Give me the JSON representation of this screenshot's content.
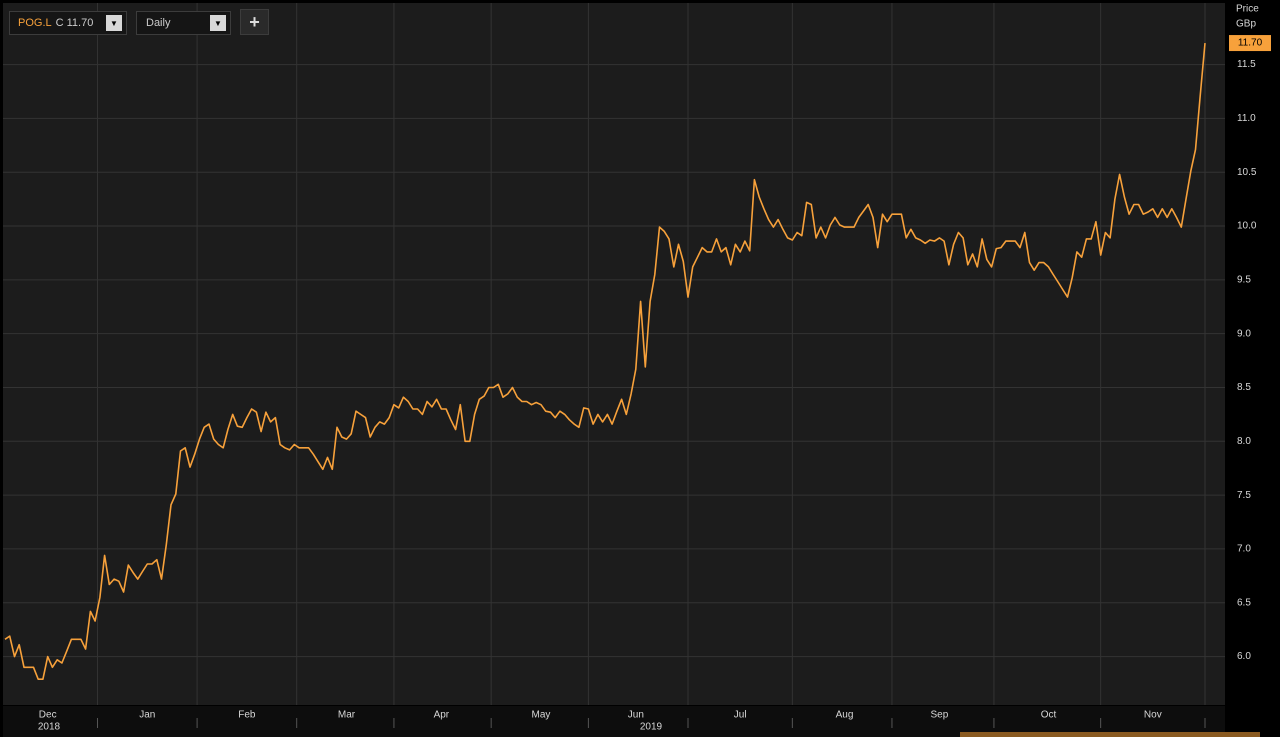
{
  "toolbar": {
    "ticker": "POG.L",
    "close": "C 11.70",
    "interval": "Daily",
    "add": "+"
  },
  "chart_data": {
    "type": "line",
    "y_label": "Price",
    "y_unit": "GBp",
    "price_tag": "11.70",
    "x_group_labels": [
      "2018",
      "2019"
    ],
    "categories": [
      null,
      null,
      null,
      null,
      null,
      null,
      null,
      null,
      null,
      "Dec",
      null,
      null,
      null,
      null,
      null,
      null,
      null,
      null,
      null,
      null,
      null,
      null,
      null,
      null,
      null,
      null,
      null,
      null,
      null,
      null,
      "Jan",
      null,
      null,
      null,
      null,
      null,
      null,
      null,
      null,
      null,
      null,
      null,
      null,
      null,
      null,
      null,
      null,
      null,
      null,
      null,
      null,
      "Feb",
      null,
      null,
      null,
      null,
      null,
      null,
      null,
      null,
      null,
      null,
      null,
      null,
      null,
      null,
      null,
      null,
      null,
      null,
      null,
      null,
      "Mar",
      null,
      null,
      null,
      null,
      null,
      null,
      null,
      null,
      null,
      null,
      null,
      null,
      null,
      null,
      null,
      null,
      null,
      null,
      null,
      "Apr",
      null,
      null,
      null,
      null,
      null,
      null,
      null,
      null,
      null,
      null,
      null,
      null,
      null,
      null,
      null,
      null,
      null,
      null,
      null,
      null,
      "May",
      null,
      null,
      null,
      null,
      null,
      null,
      null,
      null,
      null,
      null,
      null,
      null,
      null,
      null,
      null,
      null,
      null,
      null,
      null,
      "Jun",
      null,
      null,
      null,
      null,
      null,
      null,
      null,
      null,
      null,
      null,
      null,
      null,
      null,
      null,
      null,
      null,
      null,
      null,
      null,
      null,
      null,
      "Jul",
      null,
      null,
      null,
      null,
      null,
      null,
      null,
      null,
      null,
      null,
      null,
      null,
      null,
      null,
      null,
      null,
      null,
      null,
      null,
      null,
      null,
      "Aug",
      null,
      null,
      null,
      null,
      null,
      null,
      null,
      null,
      null,
      null,
      null,
      null,
      null,
      null,
      null,
      null,
      null,
      null,
      null,
      "Sep",
      null,
      null,
      null,
      null,
      null,
      null,
      null,
      null,
      null,
      null,
      null,
      null,
      null,
      null,
      null,
      null,
      null,
      null,
      null,
      null,
      null,
      null,
      "Oct",
      null,
      null,
      null,
      null,
      null,
      null,
      null,
      null,
      null,
      null,
      null,
      null,
      null,
      null,
      null,
      null,
      null,
      null,
      null,
      null,
      null,
      "Nov",
      null,
      null,
      null,
      null,
      null,
      null,
      null,
      null,
      null,
      null,
      null
    ],
    "series": [
      {
        "name": "POG.L",
        "color": "#f7a13b",
        "values": [
          6.16,
          6.19,
          6.0,
          6.11,
          5.9,
          5.9,
          5.9,
          5.79,
          5.79,
          6.0,
          5.9,
          5.97,
          5.94,
          6.05,
          6.16,
          6.16,
          6.16,
          6.07,
          6.42,
          6.33,
          6.55,
          6.94,
          6.67,
          6.72,
          6.7,
          6.6,
          6.85,
          6.78,
          6.72,
          6.79,
          6.86,
          6.86,
          6.9,
          6.72,
          7.04,
          7.41,
          7.51,
          7.91,
          7.94,
          7.76,
          7.88,
          8.02,
          8.13,
          8.16,
          8.02,
          7.97,
          7.94,
          8.11,
          8.25,
          8.14,
          8.13,
          8.22,
          8.3,
          8.27,
          8.09,
          8.27,
          8.18,
          8.22,
          7.97,
          7.94,
          7.92,
          7.97,
          7.94,
          7.94,
          7.94,
          7.88,
          7.81,
          7.74,
          7.85,
          7.74,
          8.13,
          8.04,
          8.02,
          8.07,
          8.28,
          8.25,
          8.22,
          8.04,
          8.13,
          8.18,
          8.16,
          8.22,
          8.34,
          8.31,
          8.41,
          8.37,
          8.3,
          8.3,
          8.25,
          8.37,
          8.32,
          8.39,
          8.3,
          8.3,
          8.2,
          8.11,
          8.34,
          8.0,
          8.0,
          8.25,
          8.39,
          8.42,
          8.5,
          8.5,
          8.53,
          8.41,
          8.44,
          8.5,
          8.41,
          8.37,
          8.37,
          8.34,
          8.36,
          8.34,
          8.28,
          8.27,
          8.22,
          8.28,
          8.25,
          8.2,
          8.16,
          8.13,
          8.31,
          8.3,
          8.16,
          8.25,
          8.18,
          8.25,
          8.16,
          8.28,
          8.39,
          8.25,
          8.44,
          8.67,
          9.3,
          8.69,
          9.3,
          9.55,
          9.99,
          9.95,
          9.88,
          9.62,
          9.83,
          9.67,
          9.34,
          9.62,
          9.71,
          9.8,
          9.76,
          9.76,
          9.88,
          9.76,
          9.8,
          9.64,
          9.83,
          9.76,
          9.86,
          9.77,
          10.43,
          10.27,
          10.16,
          10.06,
          9.99,
          10.06,
          9.97,
          9.89,
          9.87,
          9.94,
          9.91,
          10.22,
          10.2,
          9.89,
          9.99,
          9.89,
          10.01,
          10.08,
          10.01,
          9.99,
          9.99,
          9.99,
          10.08,
          10.14,
          10.2,
          10.08,
          9.8,
          10.11,
          10.04,
          10.11,
          10.11,
          10.11,
          9.89,
          9.97,
          9.89,
          9.87,
          9.84,
          9.87,
          9.86,
          9.89,
          9.86,
          9.64,
          9.83,
          9.94,
          9.89,
          9.64,
          9.74,
          9.62,
          9.88,
          9.69,
          9.62,
          9.79,
          9.8,
          9.86,
          9.86,
          9.86,
          9.8,
          9.94,
          9.66,
          9.59,
          9.66,
          9.66,
          9.62,
          9.55,
          9.48,
          9.41,
          9.34,
          9.52,
          9.76,
          9.71,
          9.88,
          9.88,
          10.04,
          9.73,
          9.94,
          9.89,
          10.25,
          10.48,
          10.27,
          10.11,
          10.2,
          10.2,
          10.11,
          10.13,
          10.16,
          10.08,
          10.16,
          10.08,
          10.16,
          10.08,
          9.99,
          10.25,
          10.51,
          10.71,
          11.22,
          11.7
        ]
      }
    ],
    "ylim": [
      5.55,
      12.1
    ],
    "yticks": [
      {
        "value": 6,
        "label": "6.0"
      },
      {
        "value": 6.5,
        "label": "6.5"
      },
      {
        "value": 7,
        "label": "7.0"
      },
      {
        "value": 7.5,
        "label": "7.5"
      },
      {
        "value": 8,
        "label": "8.0"
      },
      {
        "value": 8.5,
        "label": "8.5"
      },
      {
        "value": 9,
        "label": "9.0"
      },
      {
        "value": 9.5,
        "label": "9.5"
      },
      {
        "value": 10,
        "label": "10.0"
      },
      {
        "value": 10.5,
        "label": "10.5"
      },
      {
        "value": 11,
        "label": "11.0"
      },
      {
        "value": 11.5,
        "label": "11.5"
      }
    ],
    "grid": true
  }
}
